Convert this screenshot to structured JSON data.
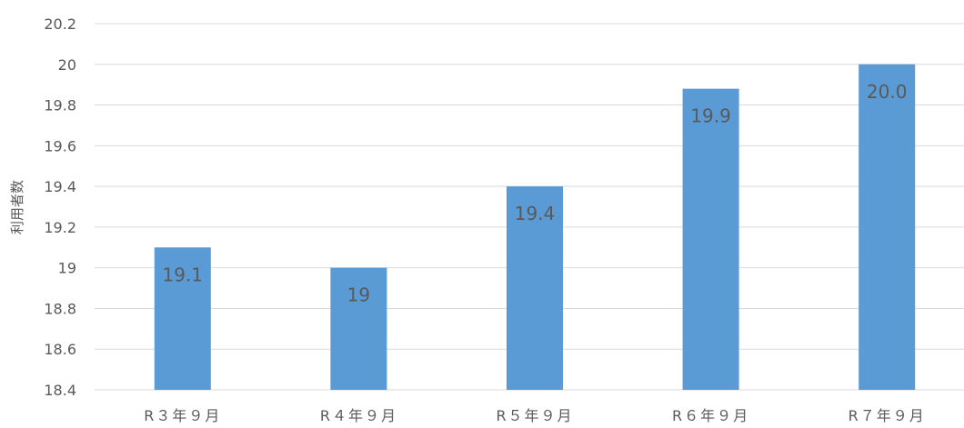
{
  "chart_data": {
    "type": "bar",
    "title": "",
    "xlabel": "",
    "ylabel": "利用者数",
    "categories": [
      "R３年９月",
      "R４年９月",
      "R５年９月",
      "R６年９月",
      "R７年９月"
    ],
    "series": [
      {
        "values": [
          19.1,
          19.0,
          19.4,
          19.88,
          20.0
        ],
        "data_labels": [
          "19.1",
          "19",
          "19.4",
          "19.9",
          "20.0"
        ],
        "color": "#5B9BD5"
      }
    ],
    "ylim": [
      18.4,
      20.2
    ],
    "yticks": [
      "18.4",
      "18.6",
      "18.8",
      "19",
      "19.2",
      "19.4",
      "19.6",
      "19.8",
      "20",
      "20.2"
    ],
    "grid": true,
    "legend": "none"
  },
  "colors": {
    "bar": "#5B9BD5",
    "grid": "#D9D9D9",
    "text": "#595959"
  }
}
